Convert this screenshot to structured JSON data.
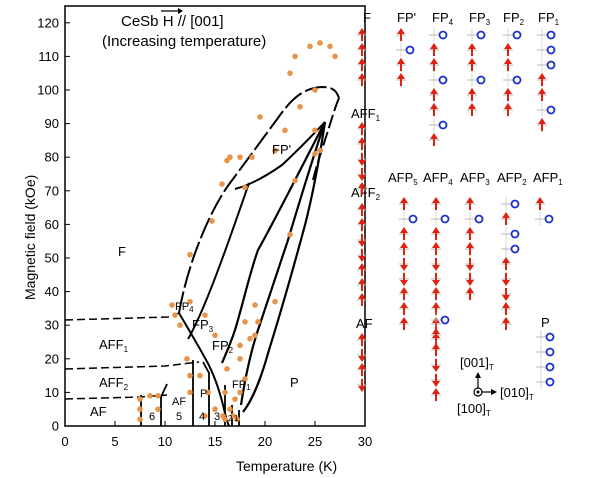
{
  "title": {
    "line1_prefix": "CeSb ",
    "line1_h": "H",
    "line1_suffix": " // [001]",
    "line2": "(Increasing temperature)"
  },
  "axes": {
    "xlabel": "Temperature (K)",
    "ylabel": "Magnetic field (kOe)",
    "xlim": [
      0,
      30
    ],
    "ylim": [
      0,
      125
    ],
    "xticks": [
      "0",
      "5",
      "10",
      "15",
      "20",
      "25",
      "30"
    ],
    "yticks": [
      "0",
      "10",
      "20",
      "30",
      "40",
      "50",
      "60",
      "70",
      "80",
      "90",
      "100",
      "110",
      "120"
    ]
  },
  "phases": {
    "F": "F",
    "FP_prime": "FP'",
    "FP4_main": "FP",
    "FP4_sub": "4",
    "FP3_main": "FP",
    "FP3_sub": "3",
    "FP2_main": "FP",
    "FP2_sub": "2",
    "FP1_main": "FP",
    "FP1_sub": "1",
    "P": "P",
    "AFF1_main": "AFF",
    "AFF1_sub": "1",
    "AFF2_main": "AFF",
    "AFF2_sub": "2",
    "AF": "AF",
    "AF_inner": "AF",
    "P_inner": "P",
    "n6": "6",
    "n5": "5",
    "n4": "4",
    "n3": "3",
    "n2": "2",
    "n1": "1"
  },
  "structures": {
    "row1": [
      {
        "main": "F",
        "sub": ""
      },
      {
        "main": "FP'",
        "sub": ""
      },
      {
        "main": "FP",
        "sub": "4"
      },
      {
        "main": "FP",
        "sub": "3"
      },
      {
        "main": "FP",
        "sub": "2"
      },
      {
        "main": "FP",
        "sub": "1"
      }
    ],
    "aff1": {
      "main": "AFF",
      "sub": "1"
    },
    "aff2": {
      "main": "AFF",
      "sub": "2"
    },
    "row3": [
      {
        "main": "AFP",
        "sub": "5"
      },
      {
        "main": "AFP",
        "sub": "4"
      },
      {
        "main": "AFP",
        "sub": "3"
      },
      {
        "main": "AFP",
        "sub": "2"
      },
      {
        "main": "AFP",
        "sub": "1"
      }
    ],
    "af": "AF",
    "p": "P"
  },
  "axes_legend": {
    "a001": "[001]",
    "a001_sub": "T",
    "a010": "[010]",
    "a010_sub": "T",
    "a100": "[100]",
    "a100_sub": "T"
  },
  "chart_data": {
    "type": "scatter",
    "title": "CeSb H // [001] (Increasing temperature)",
    "xlabel": "Temperature (K)",
    "ylabel": "Magnetic field (kOe)",
    "xlim": [
      0,
      30
    ],
    "ylim": [
      0,
      125
    ],
    "series": [
      {
        "points": [
          [
            7.5,
            2
          ],
          [
            7.5,
            5
          ],
          [
            7.5,
            8
          ],
          [
            8.5,
            9
          ],
          [
            9.3,
            5
          ],
          [
            9.3,
            9
          ],
          [
            12.5,
            10
          ],
          [
            12.5,
            15
          ],
          [
            12.2,
            20
          ],
          [
            13.5,
            15
          ],
          [
            14.0,
            3
          ],
          [
            14.3,
            10
          ],
          [
            15.0,
            5
          ],
          [
            16.0,
            2
          ],
          [
            16.5,
            5
          ],
          [
            17.0,
            8
          ],
          [
            17.5,
            10
          ],
          [
            18.0,
            14
          ],
          [
            17.5,
            20
          ],
          [
            16.0,
            10
          ],
          [
            16.2,
            17
          ],
          [
            15.8,
            3
          ],
          [
            16.8,
            3
          ],
          [
            17.2,
            2
          ],
          [
            10.7,
            36
          ],
          [
            11.0,
            33
          ],
          [
            11.5,
            30
          ],
          [
            12.5,
            37
          ],
          [
            12.5,
            51
          ],
          [
            14.7,
            61
          ],
          [
            15.7,
            72
          ],
          [
            16.2,
            79
          ],
          [
            16.5,
            80
          ],
          [
            17.5,
            80
          ],
          [
            18.7,
            80
          ],
          [
            18.0,
            71
          ],
          [
            19.5,
            92
          ],
          [
            21.0,
            82
          ],
          [
            22.0,
            88
          ],
          [
            23.5,
            95
          ],
          [
            22.5,
            105
          ],
          [
            23.0,
            110
          ],
          [
            24.5,
            113
          ],
          [
            25.5,
            114
          ],
          [
            26.5,
            113
          ],
          [
            27.0,
            110
          ],
          [
            25.0,
            100
          ],
          [
            25.0,
            88
          ],
          [
            25.0,
            81
          ],
          [
            25.5,
            82
          ],
          [
            23.0,
            73
          ],
          [
            22.5,
            57
          ],
          [
            21.0,
            37
          ],
          [
            19.0,
            36
          ],
          [
            19.3,
            31
          ],
          [
            18.0,
            31
          ],
          [
            18.5,
            26
          ],
          [
            17.5,
            24
          ],
          [
            19.0,
            27
          ],
          [
            15.0,
            27
          ],
          [
            14.0,
            33
          ]
        ]
      }
    ],
    "grid": false
  }
}
